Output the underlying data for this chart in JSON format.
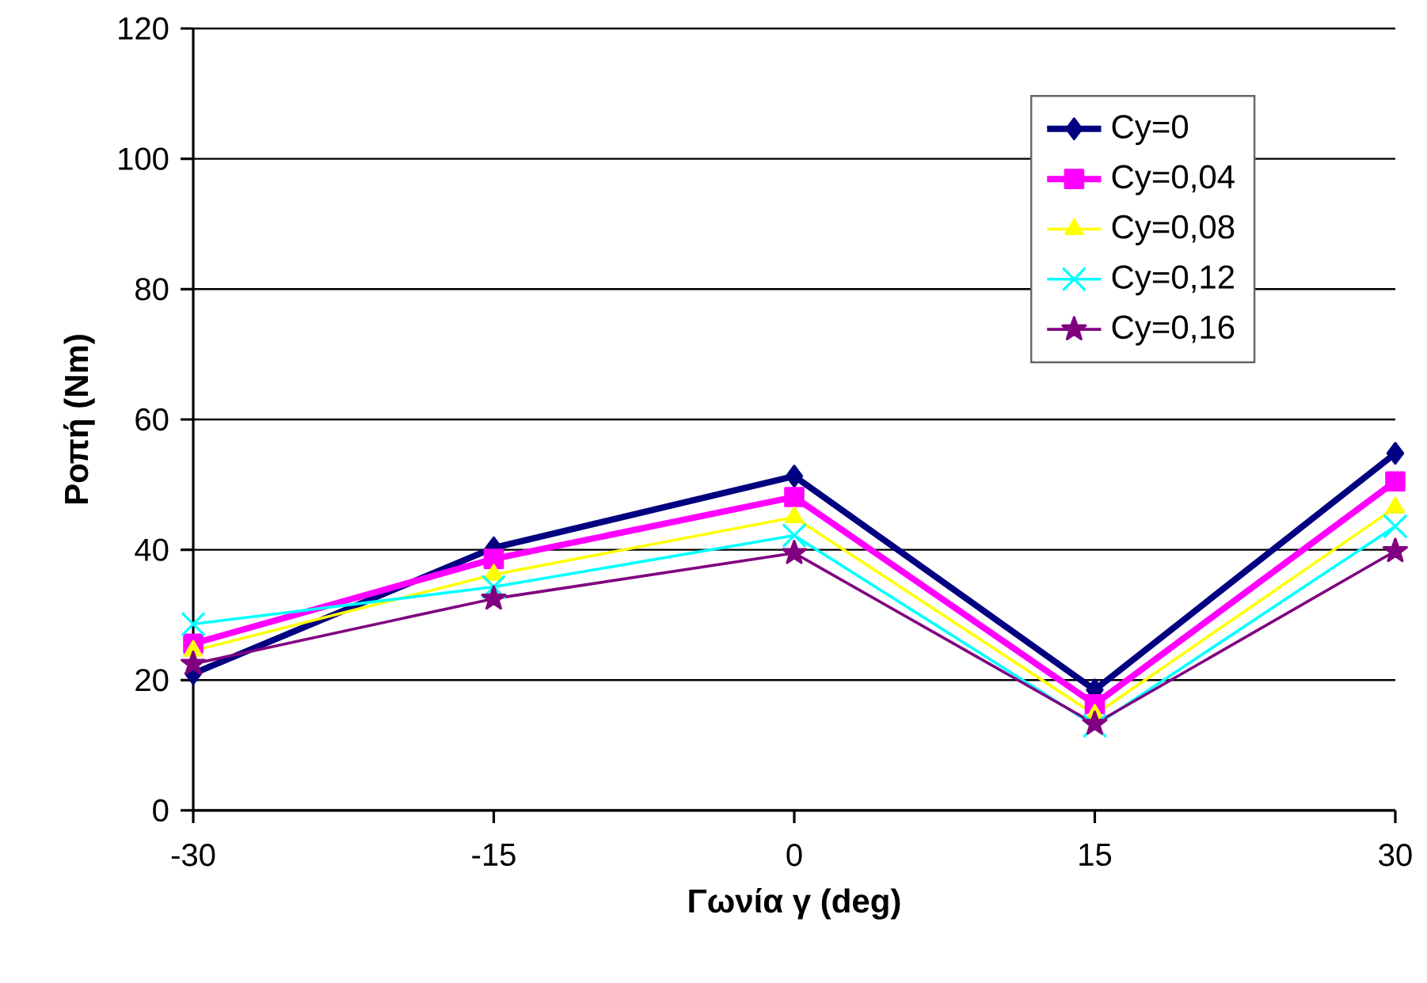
{
  "chart_data": {
    "type": "line",
    "xlabel": "Γωνία γ (deg)",
    "ylabel": "Ροπή (Nm)",
    "x": [
      -30,
      -15,
      0,
      15,
      30
    ],
    "xlim": [
      -30,
      30
    ],
    "xticks": [
      -30,
      -15,
      0,
      15,
      30
    ],
    "ylim": [
      0,
      120
    ],
    "yticks": [
      0,
      20,
      40,
      60,
      80,
      100,
      120
    ],
    "grid": "y",
    "legend": "top right",
    "series": [
      {
        "name": "Cy=0",
        "color": "#000080",
        "marker": "diamond",
        "values": [
          21.0,
          40.3,
          51.3,
          18.5,
          54.8
        ]
      },
      {
        "name": "Cy=0,04",
        "color": "#ff00ff",
        "marker": "square",
        "values": [
          25.6,
          38.6,
          48.1,
          16.3,
          50.5
        ]
      },
      {
        "name": "Cy=0,08",
        "color": "#ffff00",
        "marker": "triangle",
        "values": [
          24.5,
          36.2,
          45.0,
          14.7,
          46.5
        ]
      },
      {
        "name": "Cy=0,12",
        "color": "#00ffff",
        "marker": "cross",
        "values": [
          28.6,
          34.3,
          42.2,
          13.0,
          43.6
        ]
      },
      {
        "name": "Cy=0,16",
        "color": "#800080",
        "marker": "star",
        "values": [
          22.5,
          32.5,
          39.5,
          13.3,
          39.8
        ]
      }
    ]
  }
}
